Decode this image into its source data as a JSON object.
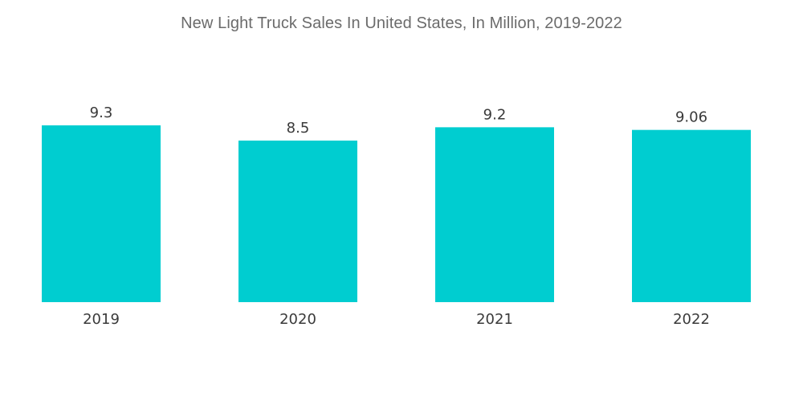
{
  "chart_data": {
    "type": "bar",
    "title": "New Light Truck Sales In United States, In Million, 2019-2022",
    "categories": [
      "2019",
      "2020",
      "2021",
      "2022"
    ],
    "values": [
      9.3,
      8.5,
      9.2,
      9.06
    ],
    "value_labels": [
      "9.3",
      "8.5",
      "9.2",
      "9.06"
    ],
    "xlabel": "",
    "ylabel": "",
    "ylim": [
      0,
      9.3
    ],
    "grid": false,
    "legend": "none",
    "bar_color": "#00cdd0"
  }
}
